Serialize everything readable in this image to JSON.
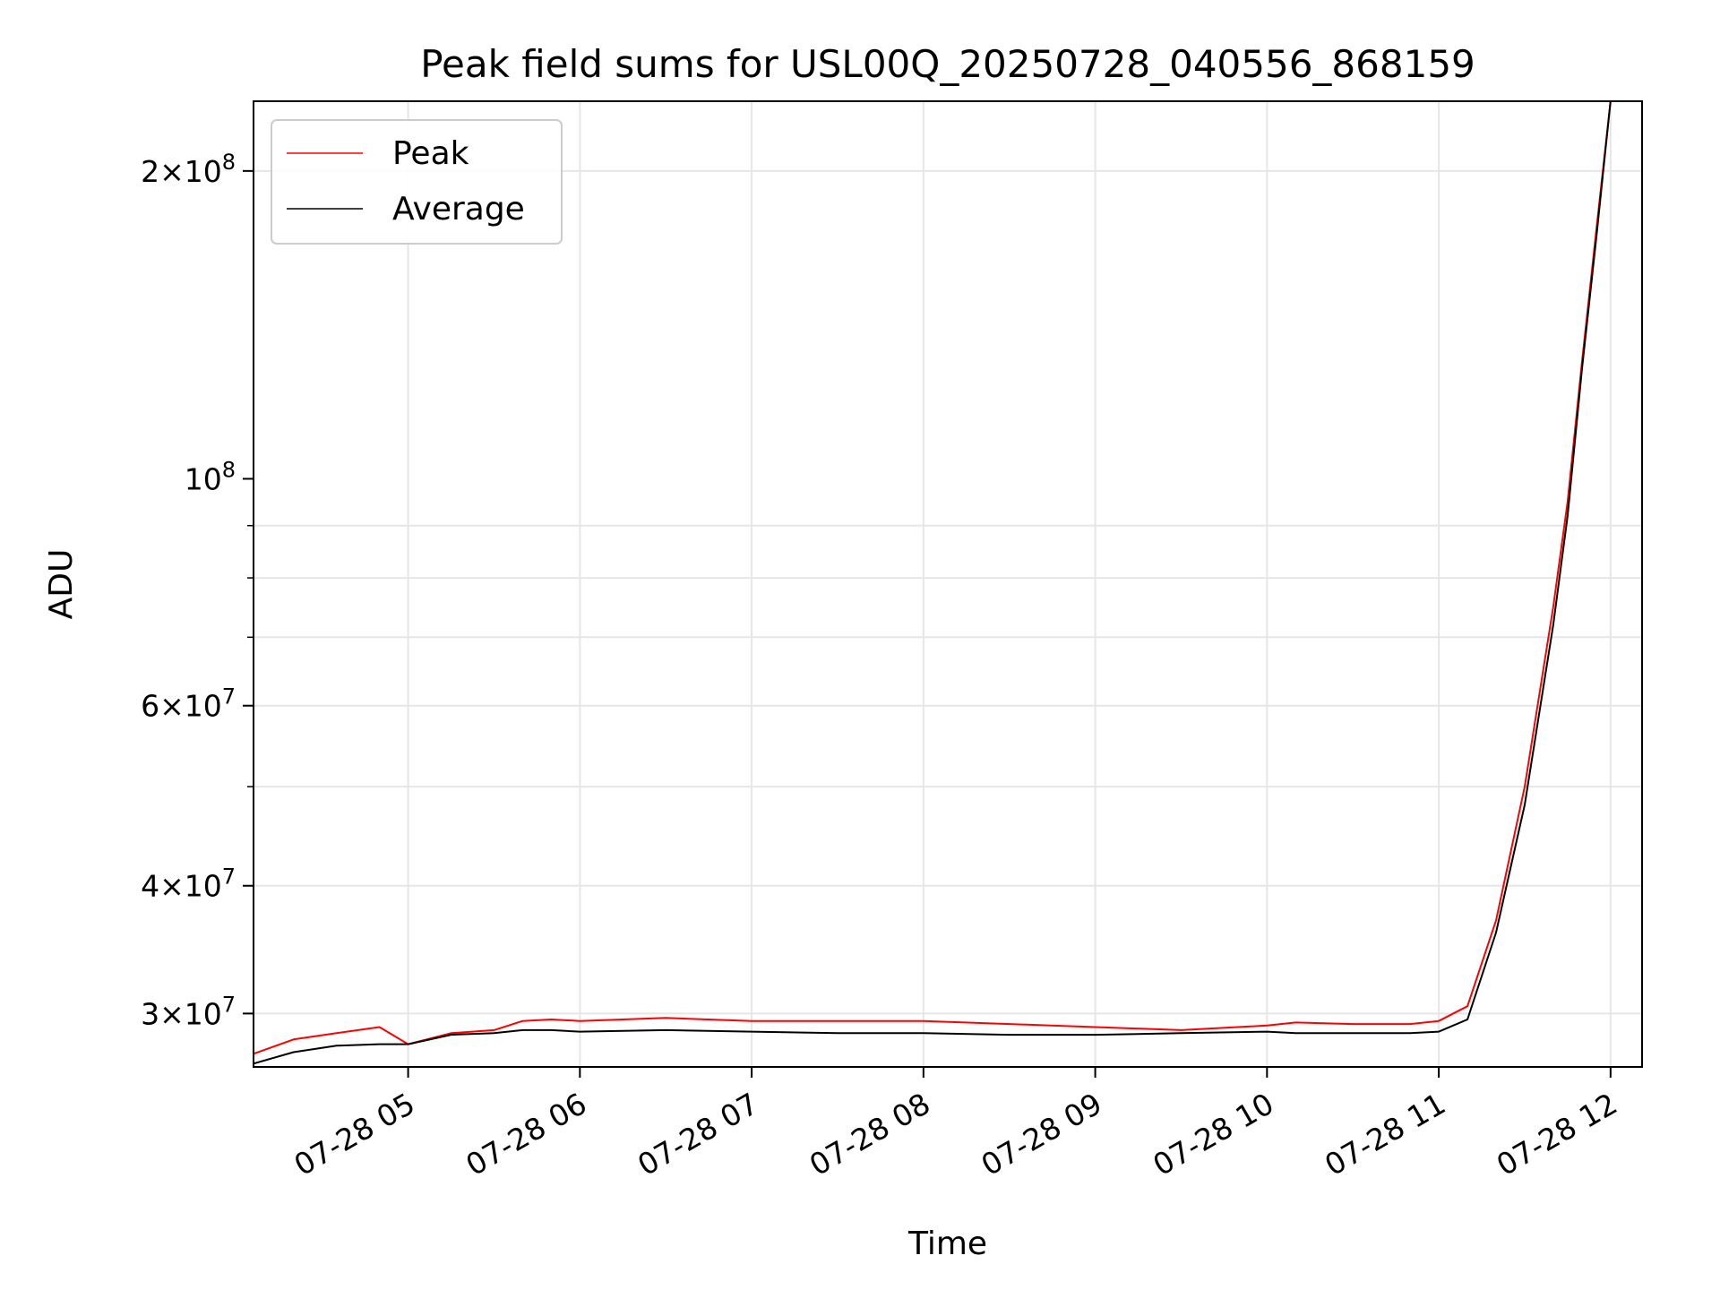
{
  "chart_data": {
    "type": "line",
    "title": "Peak field sums for USL00Q_20250728_040556_868159",
    "xlabel": "Time",
    "ylabel": "ADU",
    "y_scale": "log",
    "grid": true,
    "legend_position": "top-left",
    "xlim": [
      "07-28 04:06",
      "07-28 12:11"
    ],
    "ylim": [
      26600000,
      234000000
    ],
    "x_ticks": [
      "07-28 05",
      "07-28 06",
      "07-28 07",
      "07-28 08",
      "07-28 09",
      "07-28 10",
      "07-28 11",
      "07-28 12"
    ],
    "y_ticks": [
      {
        "value": 30000000,
        "mantissa": "3",
        "exponent": "7"
      },
      {
        "value": 40000000,
        "mantissa": "4",
        "exponent": "7"
      },
      {
        "value": 60000000,
        "mantissa": "6",
        "exponent": "7"
      },
      {
        "value": 100000000,
        "mantissa": "",
        "exponent": "8"
      },
      {
        "value": 200000000,
        "mantissa": "2",
        "exponent": "8"
      }
    ],
    "series": [
      {
        "name": "Peak",
        "color": "#ff0000",
        "x": [
          "07-28 04:06",
          "07-28 04:20",
          "07-28 04:35",
          "07-28 04:50",
          "07-28 05:00",
          "07-28 05:15",
          "07-28 05:30",
          "07-28 05:40",
          "07-28 05:50",
          "07-28 06:00",
          "07-28 06:30",
          "07-28 07:00",
          "07-28 07:30",
          "07-28 08:00",
          "07-28 08:30",
          "07-28 09:00",
          "07-28 09:30",
          "07-28 10:00",
          "07-28 10:10",
          "07-28 10:30",
          "07-28 10:50",
          "07-28 11:00",
          "07-28 11:10",
          "07-28 11:20",
          "07-28 11:30",
          "07-28 11:40",
          "07-28 11:45",
          "07-28 11:50",
          "07-28 11:55",
          "07-28 12:00"
        ],
        "values": [
          27400000,
          28300000,
          28700000,
          29100000,
          28000000,
          28700000,
          28900000,
          29500000,
          29600000,
          29500000,
          29700000,
          29500000,
          29500000,
          29500000,
          29300000,
          29100000,
          28900000,
          29200000,
          29400000,
          29300000,
          29300000,
          29500000,
          30500000,
          37000000,
          50000000,
          75000000,
          95000000,
          130000000,
          175000000,
          234000000
        ]
      },
      {
        "name": "Average",
        "color": "#000000",
        "x": [
          "07-28 04:06",
          "07-28 04:20",
          "07-28 04:35",
          "07-28 04:50",
          "07-28 05:00",
          "07-28 05:15",
          "07-28 05:30",
          "07-28 05:40",
          "07-28 05:50",
          "07-28 06:00",
          "07-28 06:30",
          "07-28 07:00",
          "07-28 07:30",
          "07-28 08:00",
          "07-28 08:30",
          "07-28 09:00",
          "07-28 09:30",
          "07-28 10:00",
          "07-28 10:10",
          "07-28 10:30",
          "07-28 10:50",
          "07-28 11:00",
          "07-28 11:10",
          "07-28 11:20",
          "07-28 11:30",
          "07-28 11:40",
          "07-28 11:45",
          "07-28 11:50",
          "07-28 11:55",
          "07-28 12:00"
        ],
        "values": [
          26800000,
          27500000,
          27900000,
          28000000,
          28000000,
          28600000,
          28700000,
          28900000,
          28900000,
          28800000,
          28900000,
          28800000,
          28700000,
          28700000,
          28600000,
          28600000,
          28700000,
          28800000,
          28700000,
          28700000,
          28700000,
          28800000,
          29600000,
          36000000,
          48000000,
          72000000,
          92000000,
          128000000,
          172000000,
          234000000
        ]
      }
    ]
  }
}
